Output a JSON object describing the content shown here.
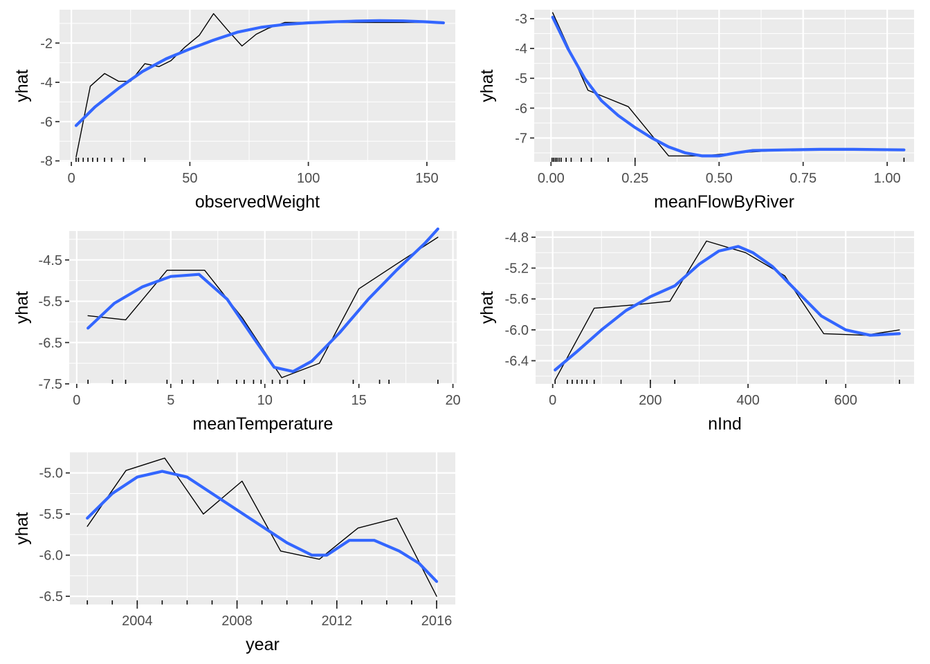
{
  "chart_data": [
    {
      "type": "line",
      "xlabel": "observedWeight",
      "ylabel": "yhat",
      "xlim": [
        -5,
        162
      ],
      "ylim": [
        -8.05,
        -0.3
      ],
      "xticks": [
        0,
        50,
        100,
        150
      ],
      "xtick_labels": [
        "0",
        "50",
        "100",
        "150"
      ],
      "yticks": [
        -8,
        -6,
        -4,
        -2
      ],
      "ytick_labels": [
        "-8",
        "-6",
        "-4",
        "-2"
      ],
      "grid": true,
      "series": [
        {
          "kind": "pd_line",
          "color": "#000000",
          "x": [
            2,
            8,
            14,
            20,
            25,
            31,
            37,
            42,
            48,
            54,
            60,
            66,
            72,
            78,
            83,
            90,
            97,
            157
          ],
          "y": [
            -7.8,
            -4.2,
            -3.55,
            -3.95,
            -3.95,
            -3.05,
            -3.2,
            -2.9,
            -2.2,
            -1.6,
            -0.5,
            -1.35,
            -2.15,
            -1.55,
            -1.25,
            -0.95,
            -0.95,
            -0.95
          ]
        },
        {
          "kind": "smooth",
          "color": "#3366FF",
          "x": [
            2,
            10,
            20,
            30,
            40,
            50,
            60,
            70,
            80,
            90,
            100,
            110,
            120,
            130,
            140,
            150,
            157
          ],
          "y": [
            -6.2,
            -5.25,
            -4.3,
            -3.45,
            -2.8,
            -2.3,
            -1.85,
            -1.45,
            -1.2,
            -1.05,
            -0.97,
            -0.92,
            -0.88,
            -0.86,
            -0.87,
            -0.92,
            -0.97
          ]
        }
      ],
      "rug": [
        2,
        3,
        5,
        7,
        9,
        11,
        14,
        17,
        22,
        31
      ]
    },
    {
      "type": "line",
      "xlabel": "meanFlowByRiver",
      "ylabel": "yhat",
      "xlim": [
        -0.05,
        1.08
      ],
      "ylim": [
        -7.8,
        -2.7
      ],
      "xticks": [
        0,
        0.25,
        0.5,
        0.75,
        1.0
      ],
      "xtick_labels": [
        "0.00",
        "0.25",
        "0.50",
        "0.75",
        "1.00"
      ],
      "yticks": [
        -7,
        -6,
        -5,
        -4,
        -3
      ],
      "ytick_labels": [
        "-7",
        "-6",
        "-5",
        "-4",
        "-3"
      ],
      "grid": true,
      "series": [
        {
          "kind": "pd_line",
          "color": "#000000",
          "x": [
            0.005,
            0.11,
            0.23,
            0.35,
            0.45,
            0.55,
            0.7,
            1.05
          ],
          "y": [
            -2.8,
            -5.4,
            -5.95,
            -7.6,
            -7.6,
            -7.5,
            -7.4,
            -7.4
          ]
        },
        {
          "kind": "smooth",
          "color": "#3366FF",
          "x": [
            0.005,
            0.05,
            0.1,
            0.15,
            0.2,
            0.25,
            0.3,
            0.35,
            0.4,
            0.45,
            0.5,
            0.55,
            0.6,
            0.7,
            0.8,
            0.9,
            1.05
          ],
          "y": [
            -2.95,
            -4.0,
            -5.0,
            -5.75,
            -6.25,
            -6.65,
            -7.0,
            -7.3,
            -7.5,
            -7.6,
            -7.6,
            -7.5,
            -7.42,
            -7.4,
            -7.38,
            -7.38,
            -7.4
          ]
        }
      ],
      "rug": [
        0.003,
        0.008,
        0.013,
        0.018,
        0.024,
        0.03,
        0.045,
        0.06,
        0.09,
        0.12,
        0.17,
        0.25,
        1.05
      ]
    },
    {
      "type": "line",
      "xlabel": "meanTemperature",
      "ylabel": "yhat",
      "xlim": [
        -0.4,
        20.2
      ],
      "ylim": [
        -7.5,
        -3.8
      ],
      "xticks": [
        0,
        5,
        10,
        15,
        20
      ],
      "xtick_labels": [
        "0",
        "5",
        "10",
        "15",
        "20"
      ],
      "yticks": [
        -7.5,
        -6.5,
        -5.5,
        -4.5
      ],
      "ytick_labels": [
        "-7.5",
        "-6.5",
        "-5.5",
        "-4.5"
      ],
      "grid": true,
      "series": [
        {
          "kind": "pd_line",
          "color": "#000000",
          "x": [
            0.6,
            2.6,
            4.8,
            6.8,
            8.8,
            10.9,
            12.9,
            15.0,
            17.0,
            19.2
          ],
          "y": [
            -5.85,
            -5.95,
            -4.75,
            -4.75,
            -5.9,
            -7.35,
            -7.0,
            -5.2,
            -4.6,
            -3.95
          ]
        },
        {
          "kind": "smooth",
          "color": "#3366FF",
          "x": [
            0.6,
            2,
            3.5,
            5,
            6.5,
            8,
            9.5,
            10.5,
            11.5,
            12.5,
            14,
            15.5,
            17,
            18.5,
            19.2
          ],
          "y": [
            -6.15,
            -5.55,
            -5.15,
            -4.9,
            -4.85,
            -5.45,
            -6.45,
            -7.1,
            -7.2,
            -6.95,
            -6.25,
            -5.45,
            -4.75,
            -4.1,
            -3.75
          ]
        }
      ],
      "rug": [
        0.6,
        1.9,
        2.6,
        4.8,
        5.6,
        6.2,
        7.5,
        8.5,
        8.9,
        9.4,
        9.8,
        10.4,
        10.8,
        11.2,
        12.1,
        14.7,
        16.1,
        16.6,
        19.2
      ]
    },
    {
      "type": "line",
      "xlabel": "nInd",
      "ylabel": "yhat",
      "xlim": [
        -35,
        740
      ],
      "ylim": [
        -6.7,
        -4.72
      ],
      "xticks": [
        0,
        200,
        400,
        600
      ],
      "xtick_labels": [
        "0",
        "200",
        "400",
        "600"
      ],
      "yticks": [
        -6.4,
        -6.0,
        -5.6,
        -5.2,
        -4.8
      ],
      "ytick_labels": [
        "-6.4",
        "-6.0",
        "-5.6",
        "-5.2",
        "-4.8"
      ],
      "grid": true,
      "series": [
        {
          "kind": "pd_line",
          "color": "#000000",
          "x": [
            5,
            85,
            160,
            240,
            315,
            395,
            475,
            555,
            640,
            710
          ],
          "y": [
            -6.65,
            -5.72,
            -5.68,
            -5.63,
            -4.85,
            -5.0,
            -5.3,
            -6.05,
            -6.07,
            -6.0
          ]
        },
        {
          "kind": "smooth",
          "color": "#3366FF",
          "x": [
            5,
            50,
            100,
            150,
            200,
            250,
            300,
            340,
            380,
            410,
            450,
            500,
            550,
            600,
            650,
            710
          ],
          "y": [
            -6.52,
            -6.28,
            -6.0,
            -5.75,
            -5.57,
            -5.43,
            -5.15,
            -4.98,
            -4.92,
            -5.0,
            -5.18,
            -5.5,
            -5.82,
            -6.0,
            -6.07,
            -6.05
          ]
        }
      ],
      "rug": [
        5,
        30,
        40,
        50,
        60,
        70,
        85,
        140,
        200,
        250,
        560,
        710
      ]
    },
    {
      "type": "line",
      "xlabel": "year",
      "ylabel": "yhat",
      "xlim": [
        2001.3,
        2016.75
      ],
      "ylim": [
        -6.6,
        -4.75
      ],
      "xticks": [
        2004,
        2008,
        2012,
        2016
      ],
      "xtick_labels": [
        "2004",
        "2008",
        "2012",
        "2016"
      ],
      "yticks": [
        -6.5,
        -6.0,
        -5.5,
        -5.0
      ],
      "ytick_labels": [
        "-6.5",
        "-6.0",
        "-5.5",
        "-5.0"
      ],
      "grid": true,
      "series": [
        {
          "kind": "pd_line",
          "color": "#000000",
          "x": [
            2002,
            2003.55,
            2005.1,
            2006.65,
            2008.2,
            2009.75,
            2011.3,
            2012.85,
            2014.4,
            2016
          ],
          "y": [
            -5.65,
            -4.97,
            -4.82,
            -5.5,
            -5.1,
            -5.95,
            -6.05,
            -5.67,
            -5.55,
            -6.5
          ]
        },
        {
          "kind": "smooth",
          "color": "#3366FF",
          "x": [
            2002,
            2003,
            2004,
            2005,
            2006,
            2007,
            2008,
            2009,
            2010,
            2011,
            2011.6,
            2012.5,
            2013.5,
            2014.5,
            2015.3,
            2016
          ],
          "y": [
            -5.55,
            -5.25,
            -5.05,
            -4.98,
            -5.05,
            -5.25,
            -5.45,
            -5.65,
            -5.85,
            -6.0,
            -6.0,
            -5.82,
            -5.82,
            -5.95,
            -6.1,
            -6.32
          ]
        }
      ],
      "rug": [
        2002,
        2003,
        2004,
        2005,
        2006,
        2007,
        2008,
        2009,
        2010,
        2011,
        2012,
        2013,
        2014,
        2015,
        2016
      ]
    }
  ]
}
